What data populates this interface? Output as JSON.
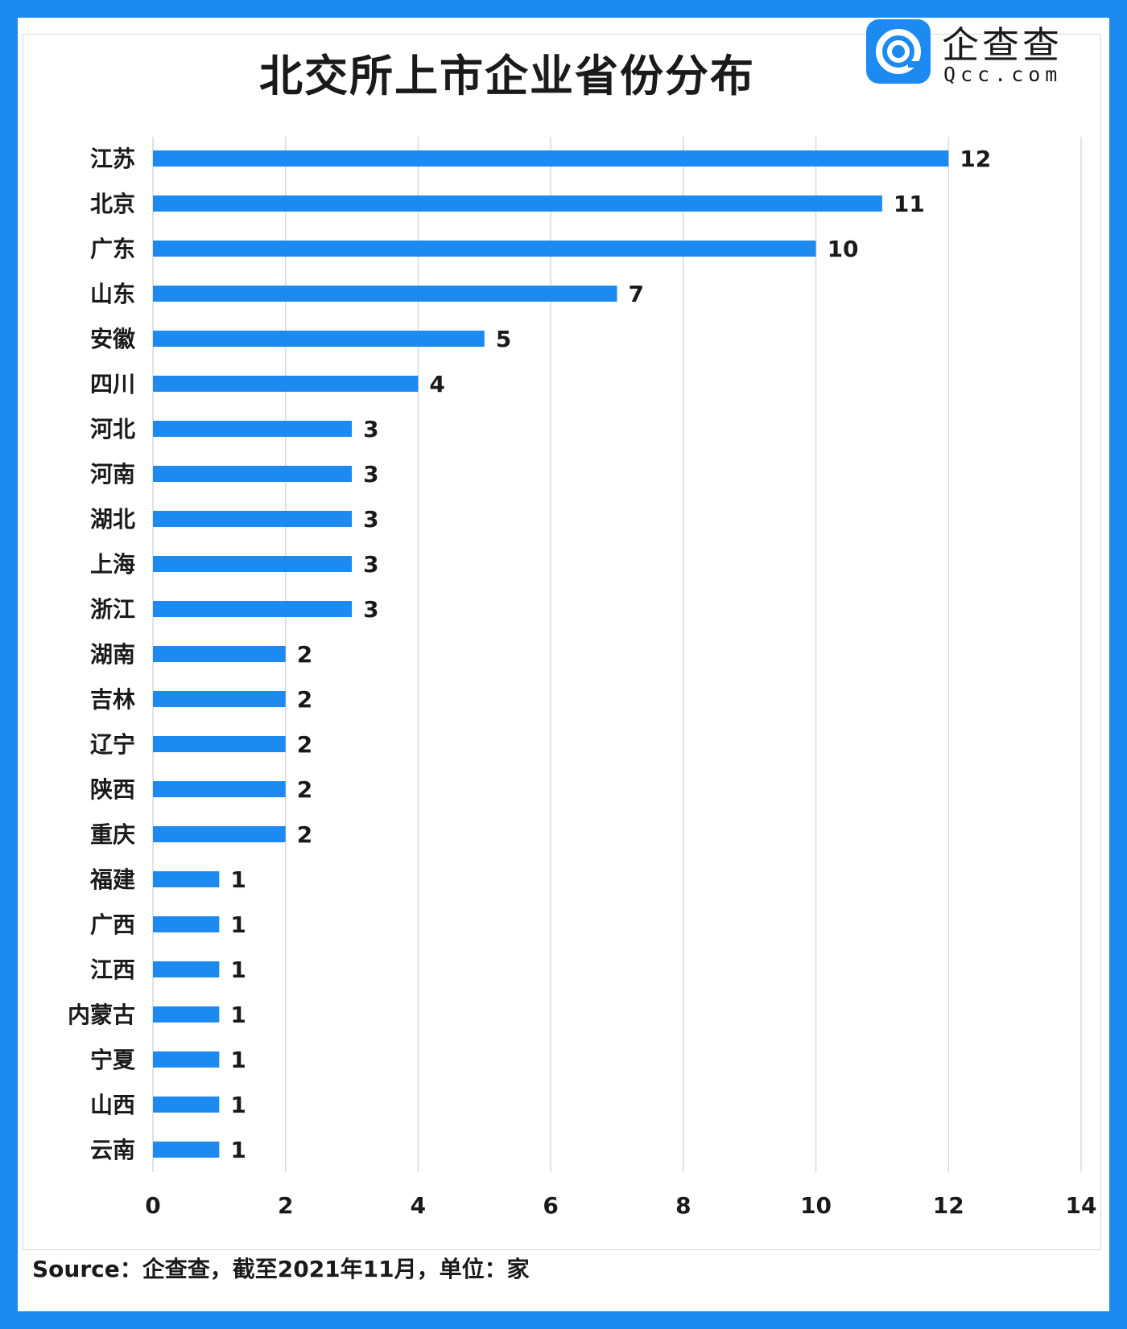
{
  "header": {
    "title": "北交所上市企业省份分布",
    "logo_name": "企查查",
    "logo_domain": "Qcc.com"
  },
  "footer": {
    "source": "Source：企查查，截至2021年11月，单位：家"
  },
  "colors": {
    "bar": "#1c8af0",
    "frame": "#1c8af0",
    "grid": "#d9d9d9"
  },
  "chart_data": {
    "type": "bar",
    "orientation": "horizontal",
    "title": "北交所上市企业省份分布",
    "categories": [
      "江苏",
      "北京",
      "广东",
      "山东",
      "安徽",
      "四川",
      "河北",
      "河南",
      "湖北",
      "上海",
      "浙江",
      "湖南",
      "吉林",
      "辽宁",
      "陕西",
      "重庆",
      "福建",
      "广西",
      "江西",
      "内蒙古",
      "宁夏",
      "山西",
      "云南"
    ],
    "values": [
      12,
      11,
      10,
      7,
      5,
      4,
      3,
      3,
      3,
      3,
      3,
      2,
      2,
      2,
      2,
      2,
      1,
      1,
      1,
      1,
      1,
      1,
      1
    ],
    "xlim": [
      0,
      14
    ],
    "xticks": [
      0,
      2,
      4,
      6,
      8,
      10,
      12,
      14
    ],
    "grid": "vertical",
    "data_labels": true
  }
}
